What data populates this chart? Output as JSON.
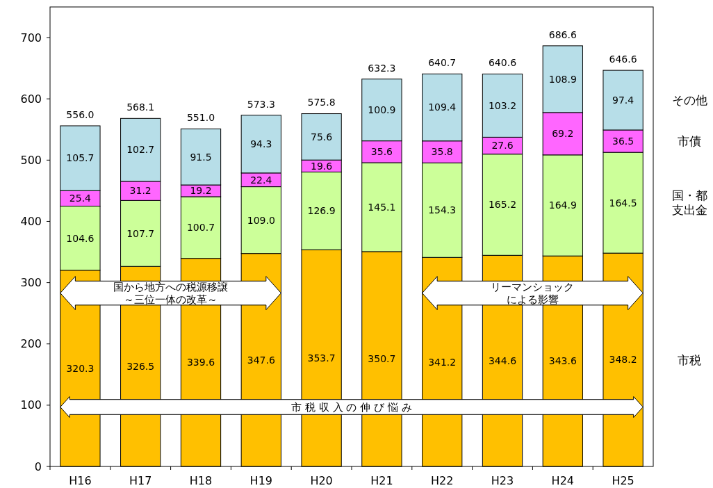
{
  "chart_data": {
    "type": "bar",
    "stacked": true,
    "categories": [
      "H16",
      "H17",
      "H18",
      "H19",
      "H20",
      "H21",
      "H22",
      "H23",
      "H24",
      "H25"
    ],
    "series": [
      {
        "name": "市税",
        "color": "#ffc000",
        "values": [
          320.3,
          326.5,
          339.6,
          347.6,
          353.7,
          350.7,
          341.2,
          344.6,
          343.6,
          348.2
        ],
        "value_labels": [
          "320.3",
          "326.5",
          "339.6",
          "347.6",
          "353.7",
          "350.7",
          "341.2",
          "344.6",
          "343.6",
          "348.2"
        ]
      },
      {
        "name": "国・都支出金",
        "color": "#ccff99",
        "values": [
          104.6,
          107.7,
          100.7,
          109.0,
          126.9,
          145.1,
          154.3,
          165.2,
          164.9,
          164.5
        ],
        "value_labels": [
          "104.6",
          "107.7",
          "100.7",
          "109.0",
          "126.9",
          "145.1",
          "154.3",
          "165.2",
          "164.9",
          "164.5"
        ]
      },
      {
        "name": "市債",
        "color": "#ff66ff",
        "values": [
          25.4,
          31.2,
          19.2,
          22.4,
          19.6,
          35.6,
          35.8,
          27.6,
          69.2,
          36.5
        ],
        "value_labels": [
          "25.4",
          "31.2",
          "19.2",
          "22.4",
          "19.6",
          "35.6",
          "35.8",
          "27.6",
          "69.2",
          "36.5"
        ]
      },
      {
        "name": "その他",
        "color": "#b7dee8",
        "values": [
          105.7,
          102.7,
          91.5,
          94.3,
          75.6,
          100.9,
          109.4,
          103.2,
          108.9,
          97.4
        ],
        "value_labels": [
          "105.7",
          "102.7",
          "91.5",
          "94.3",
          "75.6",
          "100.9",
          "109.4",
          "103.2",
          "108.9",
          "97.4"
        ]
      }
    ],
    "totals": [
      "556.0",
      "568.1",
      "551.0",
      "573.3",
      "575.8",
      "632.3",
      "640.7",
      "640.6",
      "686.6",
      "646.6"
    ],
    "ylim": [
      0,
      750
    ],
    "yticks": [
      0,
      100,
      200,
      300,
      400,
      500,
      600,
      700
    ],
    "grid": false,
    "legend": "right",
    "annotations": [
      "国から地方への税源移譲～三位一体の改革～",
      "リーマンショックによる影響",
      "市 税 収 入 の 伸 び 悩 み"
    ]
  }
}
